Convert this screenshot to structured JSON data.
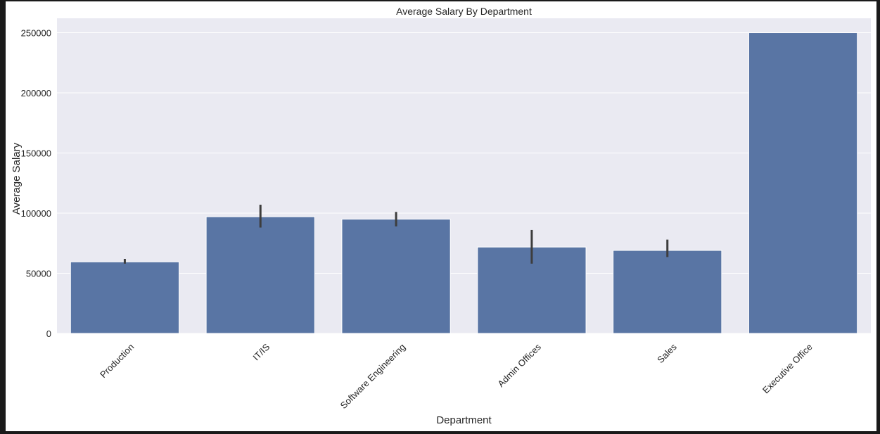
{
  "chart_data": {
    "type": "bar",
    "title": "Average Salary By Department",
    "xlabel": "Department",
    "ylabel": "Average Salary",
    "categories": [
      "Production",
      "IT/IS",
      "Software Engineering",
      "Admin Offices",
      "Sales",
      "Executive Office"
    ],
    "values": [
      59500,
      97000,
      95000,
      71800,
      69000,
      250000
    ],
    "error_bars": [
      [
        58000,
        62000
      ],
      [
        88000,
        107000
      ],
      [
        89000,
        101000
      ],
      [
        58000,
        86000
      ],
      [
        63500,
        78000
      ],
      [
        250000,
        250000
      ]
    ],
    "ylim": [
      0,
      262000
    ],
    "yticks": [
      0,
      50000,
      100000,
      150000,
      200000,
      250000
    ],
    "grid": true,
    "bar_color": "#5975a4",
    "background_color": "#eaeaf2",
    "errorbar_color": "#3d3d3d"
  }
}
